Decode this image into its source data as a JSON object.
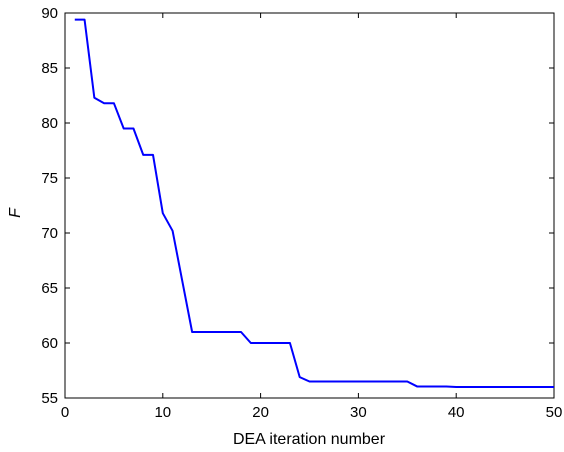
{
  "chart_data": {
    "type": "line",
    "title": "",
    "xlabel": "DEA iteration number",
    "ylabel": "F",
    "xlim": [
      0,
      50
    ],
    "ylim": [
      55,
      90
    ],
    "xticks": [
      0,
      10,
      20,
      30,
      40,
      50
    ],
    "yticks": [
      55,
      60,
      65,
      70,
      75,
      80,
      85,
      90
    ],
    "grid": false,
    "series": [
      {
        "color": "#0000ff",
        "x": [
          1,
          2,
          3,
          4,
          5,
          6,
          7,
          8,
          9,
          10,
          11,
          12,
          13,
          14,
          15,
          16,
          17,
          18,
          19,
          20,
          21,
          22,
          23,
          24,
          25,
          26,
          27,
          28,
          29,
          30,
          31,
          32,
          33,
          34,
          35,
          36,
          37,
          38,
          39,
          40,
          41,
          42,
          43,
          44,
          45,
          46,
          47,
          48,
          49,
          50
        ],
        "y": [
          89.4,
          89.4,
          82.3,
          81.8,
          81.8,
          79.5,
          79.5,
          77.1,
          77.1,
          71.8,
          70.2,
          65.6,
          61.0,
          61.0,
          61.0,
          61.0,
          61.0,
          61.0,
          60.0,
          60.0,
          60.0,
          60.0,
          60.0,
          56.9,
          56.5,
          56.5,
          56.5,
          56.5,
          56.5,
          56.5,
          56.5,
          56.5,
          56.5,
          56.5,
          56.5,
          56.05,
          56.05,
          56.05,
          56.05,
          56.0,
          56.0,
          56.0,
          56.0,
          56.0,
          56.0,
          56.0,
          56.0,
          56.0,
          56.0,
          56.0
        ]
      }
    ]
  }
}
